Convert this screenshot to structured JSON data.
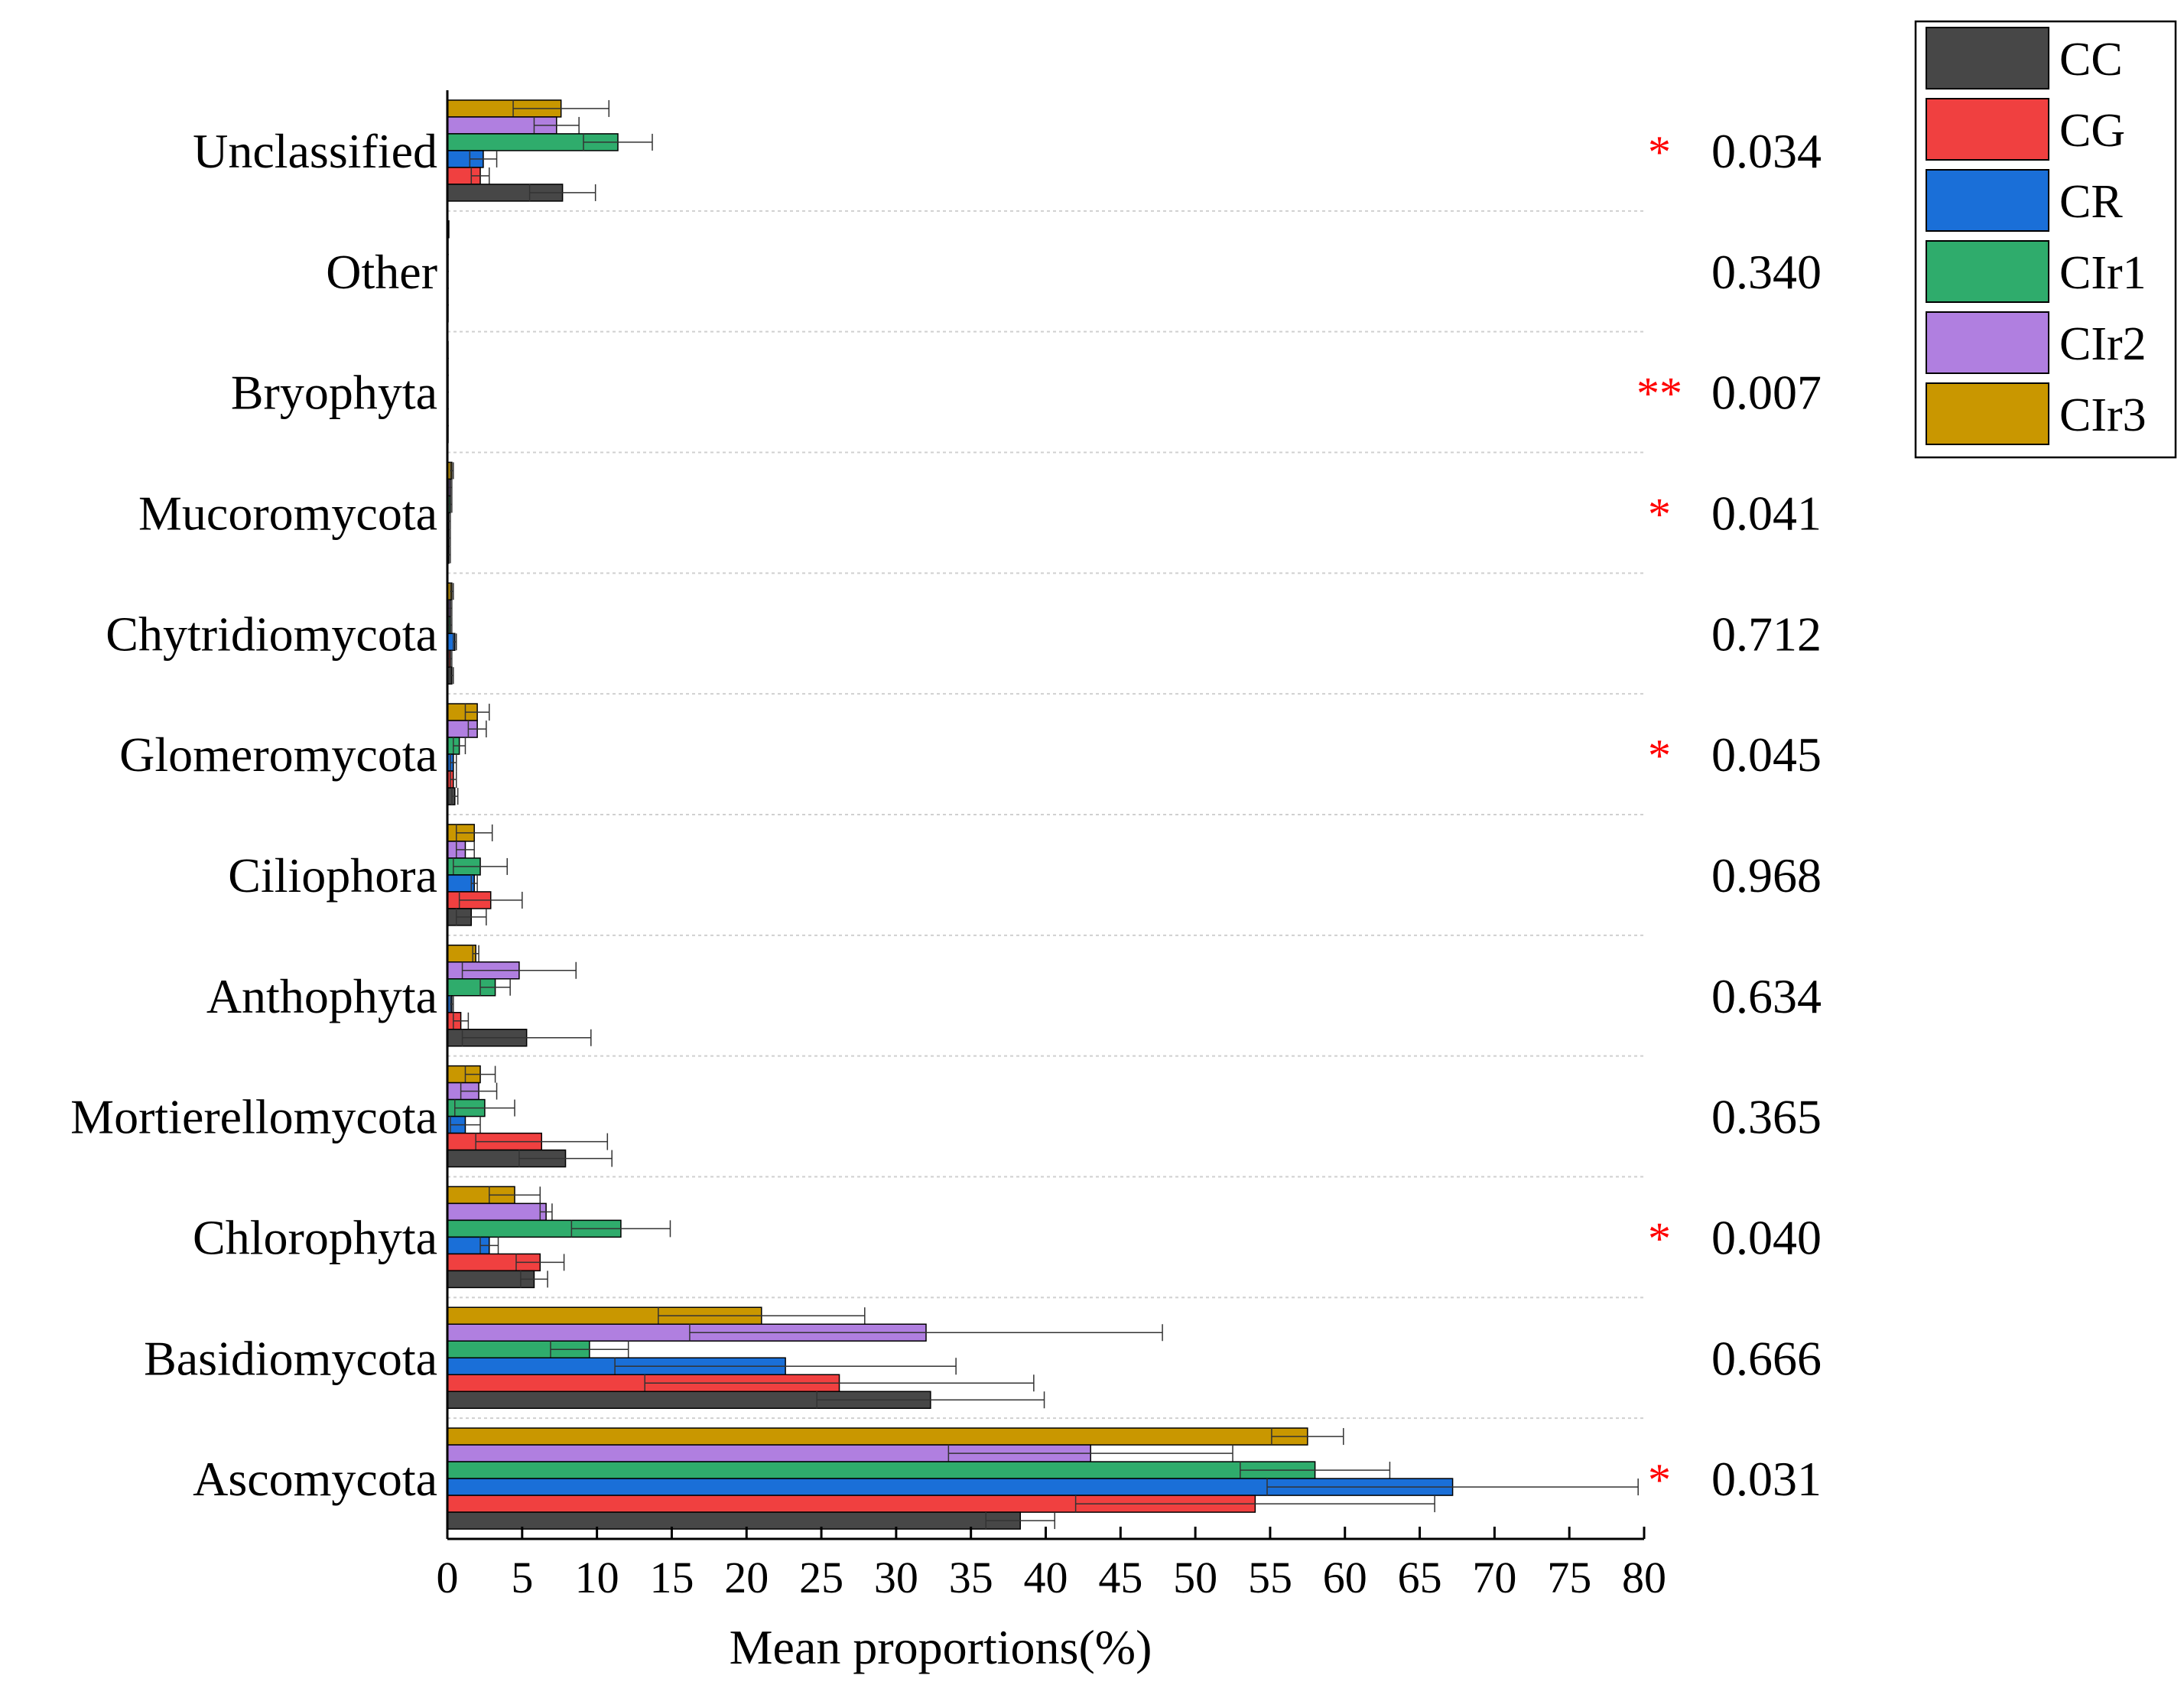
{
  "chart_data": {
    "type": "bar",
    "orientation": "horizontal",
    "xlabel": "Mean proportions(%)",
    "xlim": [
      0,
      80
    ],
    "xticks": [
      0,
      5,
      10,
      15,
      20,
      25,
      30,
      35,
      40,
      45,
      50,
      55,
      60,
      65,
      70,
      75,
      80
    ],
    "legend_position": "top-right",
    "categories": [
      "Unclassified",
      "Other",
      "Bryophyta",
      "Mucoromycota",
      "Chytridiomycota",
      "Glomeromycota",
      "Ciliophora",
      "Anthophyta",
      "Mortierellomycota",
      "Chlorophyta",
      "Basidiomycota",
      "Ascomycota"
    ],
    "p_values": [
      "0.034",
      "0.340",
      "0.007",
      "0.041",
      "0.712",
      "0.045",
      "0.968",
      "0.634",
      "0.365",
      "0.040",
      "0.666",
      "0.031"
    ],
    "significance": [
      "*",
      "",
      "**",
      "*",
      "",
      "*",
      "",
      "",
      "",
      "*",
      "",
      "*"
    ],
    "series": [
      {
        "name": "CIr3",
        "color": "#c99700",
        "values": [
          7.6,
          0.1,
          0.05,
          0.3,
          0.3,
          2.0,
          1.8,
          1.9,
          2.2,
          4.5,
          21.0,
          57.5
        ],
        "errors": [
          3.2,
          0.05,
          0.02,
          0.1,
          0.1,
          0.8,
          1.2,
          0.2,
          1.0,
          1.7,
          6.9,
          2.4
        ]
      },
      {
        "name": "CIr2",
        "color": "#b07fe0",
        "values": [
          7.3,
          0.05,
          0.03,
          0.2,
          0.2,
          2.0,
          1.2,
          4.8,
          2.1,
          6.6,
          32.0,
          43.0
        ],
        "errors": [
          1.5,
          0.03,
          0.02,
          0.1,
          0.1,
          0.6,
          0.6,
          3.8,
          1.2,
          0.4,
          15.8,
          9.5
        ]
      },
      {
        "name": "CIr1",
        "color": "#2fac6c",
        "values": [
          11.4,
          0.05,
          0.02,
          0.2,
          0.2,
          0.8,
          2.2,
          3.2,
          2.5,
          11.6,
          9.5,
          58.0
        ],
        "errors": [
          2.3,
          0.03,
          0.01,
          0.1,
          0.1,
          0.4,
          1.8,
          1.0,
          2.0,
          3.3,
          2.6,
          5.0
        ]
      },
      {
        "name": "CR",
        "color": "#1a6fd8",
        "values": [
          2.4,
          0.05,
          0.02,
          0.1,
          0.5,
          0.4,
          1.8,
          0.3,
          1.2,
          2.8,
          22.6,
          67.2
        ],
        "errors": [
          0.9,
          0.03,
          0.01,
          0.1,
          0.1,
          0.2,
          0.2,
          0.1,
          1.0,
          0.6,
          11.4,
          12.4
        ]
      },
      {
        "name": "CG",
        "color": "#f04040",
        "values": [
          2.2,
          0.05,
          0.02,
          0.1,
          0.2,
          0.4,
          2.9,
          0.9,
          6.3,
          6.2,
          26.2,
          54.0
        ],
        "errors": [
          0.6,
          0.03,
          0.01,
          0.1,
          0.1,
          0.2,
          2.1,
          0.5,
          4.4,
          1.6,
          13.0,
          12.0
        ]
      },
      {
        "name": "CC",
        "color": "#474747",
        "values": [
          7.7,
          0.05,
          0.02,
          0.1,
          0.3,
          0.5,
          1.6,
          5.3,
          7.9,
          5.8,
          32.3,
          38.3
        ],
        "errors": [
          2.2,
          0.03,
          0.01,
          0.1,
          0.1,
          0.2,
          1.0,
          4.3,
          3.1,
          0.9,
          7.6,
          2.3
        ]
      }
    ]
  }
}
